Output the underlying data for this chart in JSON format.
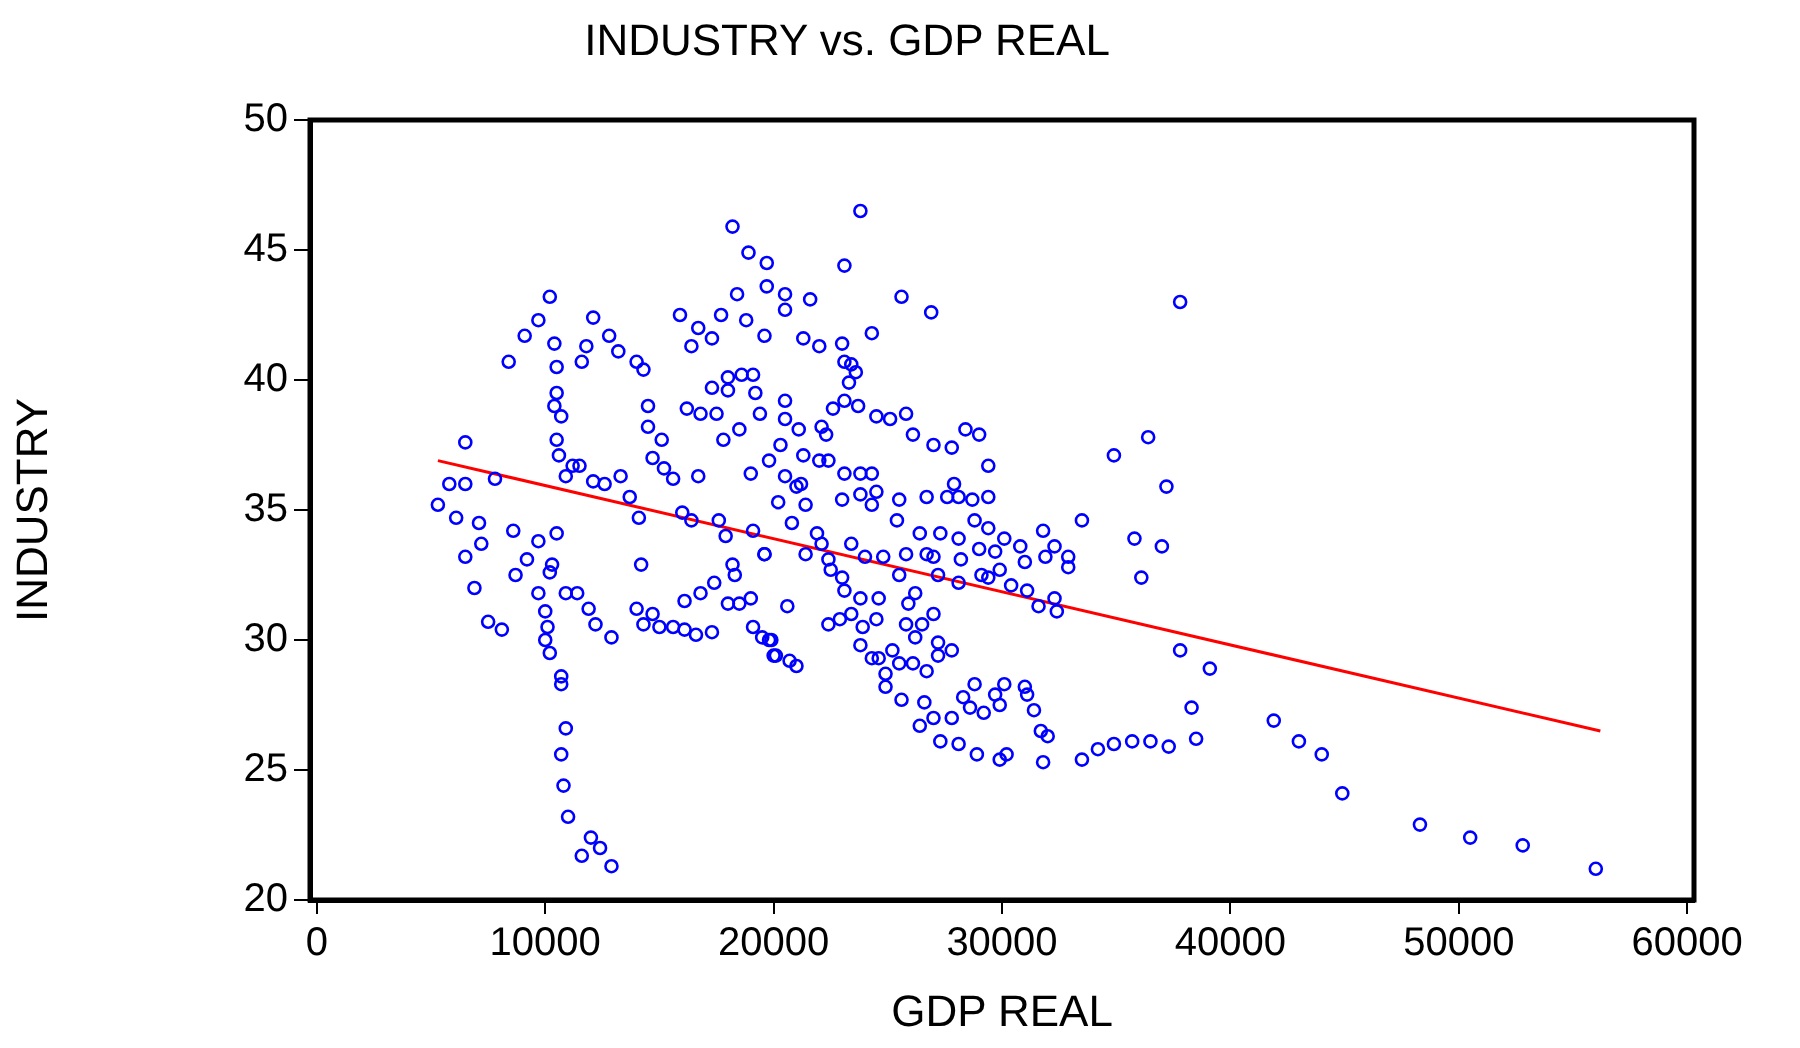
{
  "chart_data": {
    "type": "scatter",
    "title": "INDUSTRY vs. GDP REAL",
    "xlabel": "GDP REAL",
    "ylabel": "INDUSTRY",
    "xlim": [
      -300,
      60300
    ],
    "ylim": [
      20,
      50
    ],
    "xticks": [
      0,
      10000,
      20000,
      30000,
      40000,
      50000,
      60000
    ],
    "yticks": [
      20,
      25,
      30,
      35,
      40,
      45,
      50
    ],
    "grid": false,
    "marker": "circle",
    "series": [
      {
        "color": "#0000ff",
        "x": [
          5300,
          5800,
          6500,
          6500,
          6100,
          7100,
          6900,
          6500,
          7200,
          7500,
          8100,
          8400,
          7800,
          8600,
          8700,
          9100,
          9700,
          10200,
          10400,
          10500,
          10500,
          10400,
          10700,
          10500,
          10600,
          10900,
          10500,
          9700,
          9200,
          10300,
          10200,
          9700,
          10000,
          10100,
          10000,
          10200,
          10700,
          10700,
          10900,
          10700,
          10800,
          11000,
          12000,
          12400,
          11600,
          12900,
          10900,
          11400,
          11900,
          12200,
          12900,
          11200,
          11500,
          12100,
          12600,
          13300,
          11600,
          11800,
          12100,
          12800,
          13200,
          14000,
          14300,
          14500,
          14500,
          15100,
          14700,
          15200,
          15600,
          13700,
          14100,
          14200,
          14000,
          14700,
          14300,
          15000,
          15600,
          16100,
          16600,
          17300,
          15900,
          16700,
          16400,
          17300,
          17700,
          18200,
          18400,
          18900,
          19700,
          19700,
          18800,
          19600,
          17300,
          18000,
          18600,
          19100,
          18000,
          16200,
          16800,
          17500,
          17800,
          18500,
          19200,
          19400,
          16700,
          16000,
          16400,
          17600,
          17900,
          19000,
          19100,
          18200,
          18300,
          19600,
          16100,
          16800,
          17400,
          18000,
          18500,
          19000,
          19100,
          19500,
          20000,
          19900,
          23800,
          23100,
          20500,
          21600,
          25600,
          26900,
          37800,
          20500,
          21300,
          22000,
          23000,
          24300,
          23100,
          23400,
          23600,
          23300,
          22600,
          23100,
          23700,
          24500,
          25100,
          25800,
          26100,
          27000,
          27800,
          28400,
          29000,
          29400,
          20500,
          20500,
          21100,
          22100,
          22300,
          20300,
          21300,
          22000,
          22400,
          19800,
          20500,
          21200,
          21000,
          23100,
          23800,
          24300,
          20200,
          20800,
          21400,
          23000,
          23800,
          24500,
          24300,
          25500,
          25400,
          26700,
          27600,
          28100,
          28700,
          29400,
          27900,
          21900,
          22100,
          19600,
          21400,
          22400,
          23400,
          22500,
          23000,
          23100,
          24000,
          24800,
          25800,
          27000,
          26400,
          27300,
          28100,
          28800,
          29400,
          29000,
          28200,
          29700,
          30100,
          30800,
          31000,
          29900,
          29400,
          28100,
          29100,
          30400,
          31100,
          31800,
          31900,
          32300,
          32900,
          32900,
          33500,
          32300,
          32400,
          31600,
          34900,
          36400,
          37200,
          35800,
          37000,
          36100,
          37800,
          39100,
          38300,
          38500,
          37300,
          36500,
          35700,
          34900,
          34200,
          33500,
          31800,
          30200,
          29900,
          28900,
          28100,
          27300,
          26400,
          27000,
          27800,
          26600,
          25600,
          24900,
          25500,
          26100,
          26700,
          27200,
          27800,
          28300,
          28800,
          29700,
          29900,
          30100,
          31000,
          31100,
          31400,
          31700,
          32000,
          29200,
          28600,
          24900,
          24600,
          25200,
          26200,
          27200,
          24500,
          23900,
          23400,
          22900,
          22400,
          23800,
          24300,
          27000,
          26500,
          25800,
          26200,
          25900,
          23800,
          24600,
          20600,
          19800,
          20100,
          20700,
          21000,
          25500,
          26700,
          27200,
          41900,
          43000,
          44000,
          44900,
          48300,
          50500,
          52800,
          56000
        ],
        "values": [
          35.2,
          36.0,
          37.6,
          36.0,
          34.7,
          34.5,
          32.0,
          33.2,
          33.7,
          30.7,
          30.4,
          40.7,
          36.2,
          34.2,
          32.5,
          41.7,
          42.3,
          43.2,
          41.4,
          40.5,
          39.5,
          39.0,
          38.6,
          37.7,
          37.1,
          36.3,
          34.1,
          33.8,
          33.1,
          32.9,
          32.6,
          31.8,
          31.1,
          30.5,
          30.0,
          29.5,
          28.6,
          28.3,
          26.6,
          25.6,
          24.4,
          23.2,
          22.4,
          22.0,
          21.7,
          21.3,
          31.8,
          31.8,
          31.2,
          30.6,
          30.1,
          36.7,
          36.7,
          36.1,
          36.0,
          36.3,
          40.7,
          41.3,
          42.4,
          41.7,
          41.1,
          40.7,
          40.4,
          39.0,
          38.2,
          37.7,
          37.0,
          36.6,
          36.2,
          35.5,
          34.7,
          32.9,
          31.2,
          31.0,
          30.6,
          30.5,
          30.5,
          30.4,
          30.2,
          30.3,
          42.5,
          42.0,
          41.3,
          41.6,
          42.5,
          45.9,
          43.3,
          44.9,
          44.5,
          43.6,
          42.3,
          41.7,
          39.7,
          40.1,
          40.2,
          40.2,
          39.6,
          38.9,
          38.7,
          38.7,
          37.7,
          38.1,
          39.5,
          38.7,
          36.3,
          34.9,
          34.6,
          34.6,
          34.0,
          36.4,
          34.2,
          32.9,
          32.5,
          33.3,
          31.5,
          31.8,
          32.2,
          31.4,
          31.4,
          31.6,
          30.5,
          30.1,
          29.4,
          30.0,
          46.5,
          44.4,
          43.3,
          43.1,
          43.2,
          42.6,
          43.0,
          42.7,
          41.6,
          41.3,
          41.4,
          41.8,
          40.7,
          40.6,
          40.3,
          39.9,
          38.9,
          39.2,
          39.0,
          38.6,
          38.5,
          38.7,
          37.9,
          37.5,
          37.4,
          38.1,
          37.9,
          36.7,
          39.2,
          38.5,
          38.1,
          38.2,
          37.9,
          37.5,
          37.1,
          36.9,
          36.9,
          36.9,
          36.3,
          36.0,
          35.9,
          36.4,
          36.4,
          36.4,
          35.3,
          34.5,
          35.2,
          35.4,
          35.6,
          35.7,
          35.2,
          35.4,
          34.6,
          35.5,
          35.5,
          35.5,
          35.4,
          35.5,
          36.0,
          34.1,
          33.7,
          33.3,
          33.3,
          33.1,
          33.7,
          32.7,
          32.4,
          31.9,
          33.2,
          33.2,
          33.3,
          33.2,
          34.1,
          34.1,
          33.9,
          34.6,
          34.3,
          33.5,
          33.1,
          33.4,
          33.9,
          33.6,
          33.0,
          32.7,
          32.4,
          32.2,
          32.5,
          32.1,
          31.9,
          34.2,
          33.2,
          33.6,
          33.2,
          32.8,
          34.6,
          31.6,
          31.1,
          31.3,
          37.1,
          37.8,
          35.9,
          33.9,
          33.6,
          32.4,
          29.6,
          28.9,
          27.4,
          26.2,
          25.9,
          26.1,
          26.1,
          26.0,
          25.8,
          25.4,
          25.3,
          25.6,
          25.4,
          25.6,
          26.0,
          26.1,
          26.7,
          27.0,
          27.0,
          27.6,
          27.7,
          28.2,
          29.1,
          29.1,
          28.8,
          29.4,
          29.6,
          27.8,
          28.3,
          27.9,
          27.5,
          28.3,
          28.2,
          27.9,
          27.3,
          26.5,
          26.3,
          27.2,
          27.4,
          28.7,
          29.3,
          29.6,
          30.1,
          29.9,
          30.8,
          30.5,
          31.0,
          30.8,
          30.6,
          29.8,
          29.3,
          31.0,
          30.6,
          30.6,
          31.8,
          31.4,
          31.6,
          31.6,
          31.3,
          30.0,
          29.4,
          29.2,
          29.0,
          32.5,
          33.3,
          32.5,
          26.9,
          26.1,
          25.6,
          24.1,
          22.9,
          22.4,
          22.1,
          21.2
        ]
      },
      {
        "type": "line",
        "marker": "none",
        "color": "#ff0000",
        "x": [
          5300,
          56200
        ],
        "values": [
          36.9,
          26.5
        ]
      }
    ]
  }
}
